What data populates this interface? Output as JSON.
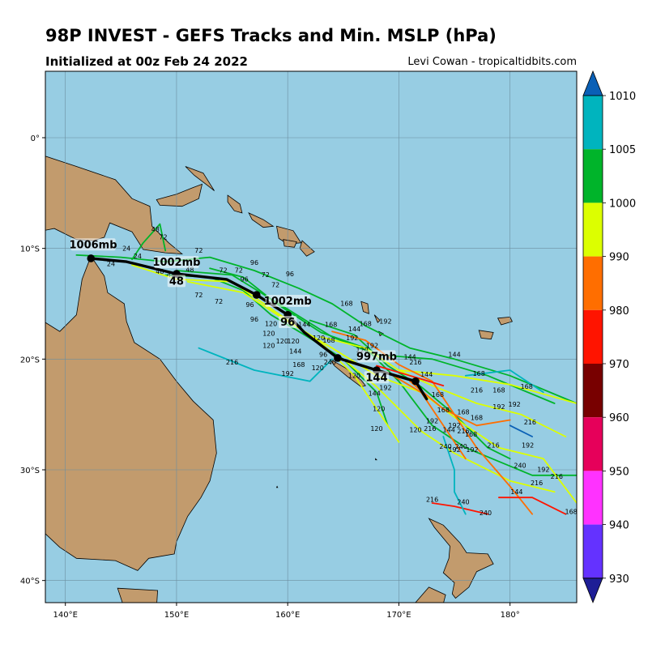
{
  "title": "98P INVEST - GEFS Tracks and Min. MSLP (hPa)",
  "subtitle": "Initialized at 00z Feb 24 2022",
  "credit": "Levi Cowan - tropicaltidbits.com",
  "map": {
    "extent": {
      "lon": [
        138.2,
        186
      ],
      "lat": [
        -42,
        6
      ]
    },
    "lon_ticks": [
      {
        "value": 140,
        "label": "140°E"
      },
      {
        "value": 150,
        "label": "150°E"
      },
      {
        "value": 160,
        "label": "160°E"
      },
      {
        "value": 170,
        "label": "170°E"
      },
      {
        "value": 180,
        "label": "180°"
      }
    ],
    "lat_ticks": [
      {
        "value": 0,
        "label": "0°"
      },
      {
        "value": -10,
        "label": "10°S"
      },
      {
        "value": -20,
        "label": "20°S"
      },
      {
        "value": -30,
        "label": "30°S"
      },
      {
        "value": -40,
        "label": "40°S"
      }
    ],
    "colors": {
      "ocean": "#97cde3",
      "land": "#c29b6d",
      "grid": "#6b8ea0"
    }
  },
  "colorbar": {
    "ticks": [
      "1010",
      "1005",
      "1000",
      "990",
      "980",
      "970",
      "960",
      "950",
      "940",
      "930"
    ],
    "colors": [
      "#0a60b6",
      "#00b4be",
      "#00b42a",
      "#dcff00",
      "#ff6e00",
      "#ff1400",
      "#780000",
      "#e6005a",
      "#ff32ff",
      "#6432ff",
      "#1e1e96"
    ]
  },
  "mean_track": {
    "points": [
      [
        142.3,
        -10.9
      ],
      [
        145.5,
        -11.2
      ],
      [
        150.0,
        -12.3
      ],
      [
        154.5,
        -12.8
      ],
      [
        157.2,
        -14.2
      ],
      [
        160.0,
        -16.0
      ],
      [
        161.5,
        -17.6
      ],
      [
        164.5,
        -19.9
      ],
      [
        168.0,
        -21.0
      ],
      [
        171.5,
        -22.0
      ],
      [
        172.5,
        -23.6
      ]
    ],
    "dots": [
      [
        142.3,
        -10.9
      ],
      [
        150.0,
        -12.3
      ],
      [
        157.2,
        -14.2
      ],
      [
        160.0,
        -16.0
      ],
      [
        164.5,
        -19.9
      ],
      [
        168.0,
        -21.0
      ],
      [
        171.5,
        -22.0
      ]
    ],
    "labels": [
      {
        "text": "1006mb",
        "lon": 142.5,
        "lat": -9.9
      },
      {
        "text": "1002mb",
        "lon": 150.0,
        "lat": -11.5
      },
      {
        "text": "48",
        "lon": 150.0,
        "lat": -13.2
      },
      {
        "text": "1002mb",
        "lon": 160.0,
        "lat": -15.0
      },
      {
        "text": "96",
        "lon": 160.0,
        "lat": -16.9
      },
      {
        "text": "997mb",
        "lon": 168.0,
        "lat": -20.0
      },
      {
        "text": "144",
        "lon": 168.0,
        "lat": -21.9
      }
    ]
  },
  "tracks": [
    {
      "color": "#00b42a",
      "points": [
        [
          141.0,
          -10.6
        ],
        [
          145.0,
          -10.8
        ],
        [
          149.0,
          -11.2
        ],
        [
          153.0,
          -10.8
        ],
        [
          157.0,
          -12.0
        ],
        [
          161.0,
          -13.6
        ],
        [
          164.0,
          -15.0
        ],
        [
          167.0,
          -17.0
        ],
        [
          171.0,
          -19.0
        ],
        [
          175.0,
          -20.0
        ],
        [
          180.0,
          -21.5
        ],
        [
          186.0,
          -24.0
        ]
      ]
    },
    {
      "color": "#00b42a",
      "points": [
        [
          146.0,
          -11.0
        ],
        [
          147.0,
          -9.5
        ],
        [
          148.5,
          -7.8
        ],
        [
          149.0,
          -10.2
        ]
      ]
    },
    {
      "color": "#00b42a",
      "points": [
        [
          149.0,
          -12.4
        ],
        [
          153.0,
          -12.6
        ],
        [
          156.0,
          -13.8
        ],
        [
          158.5,
          -16.0
        ],
        [
          161.5,
          -17.8
        ],
        [
          165.0,
          -20.0
        ],
        [
          168.0,
          -23.0
        ],
        [
          169.0,
          -26.0
        ]
      ]
    },
    {
      "color": "#00b42a",
      "points": [
        [
          150.0,
          -12.0
        ],
        [
          155.0,
          -12.4
        ],
        [
          160.0,
          -15.5
        ],
        [
          164.0,
          -18.0
        ],
        [
          168.0,
          -19.6
        ],
        [
          173.0,
          -20.0
        ],
        [
          178.0,
          -21.5
        ],
        [
          184.0,
          -24.0
        ]
      ]
    },
    {
      "color": "#00b42a",
      "points": [
        [
          153.0,
          -11.8
        ],
        [
          156.0,
          -12.6
        ],
        [
          159.0,
          -15.0
        ],
        [
          163.0,
          -17.6
        ],
        [
          167.0,
          -19.0
        ],
        [
          170.0,
          -22.0
        ],
        [
          173.0,
          -26.0
        ],
        [
          176.0,
          -28.0
        ],
        [
          182.0,
          -30.5
        ],
        [
          186.0,
          -30.5
        ]
      ]
    },
    {
      "color": "#00b42a",
      "points": [
        [
          162.0,
          -16.5
        ],
        [
          166.0,
          -17.8
        ],
        [
          169.0,
          -20.6
        ],
        [
          172.0,
          -22.5
        ],
        [
          175.0,
          -25.0
        ],
        [
          178.0,
          -28.0
        ],
        [
          180.0,
          -29.0
        ]
      ]
    },
    {
      "color": "#dcff00",
      "points": [
        [
          146.0,
          -11.5
        ],
        [
          150.0,
          -12.8
        ],
        [
          155.0,
          -13.0
        ],
        [
          159.0,
          -15.8
        ],
        [
          163.0,
          -18.5
        ],
        [
          166.0,
          -21.5
        ],
        [
          168.0,
          -24.5
        ],
        [
          170.0,
          -27.5
        ]
      ]
    },
    {
      "color": "#dcff00",
      "points": [
        [
          151.0,
          -13.0
        ],
        [
          156.0,
          -14.0
        ],
        [
          160.0,
          -16.6
        ],
        [
          164.0,
          -19.0
        ],
        [
          168.0,
          -21.5
        ],
        [
          172.0,
          -23.0
        ],
        [
          176.0,
          -26.0
        ],
        [
          179.0,
          -28.0
        ],
        [
          183.0,
          -29.0
        ],
        [
          186.0,
          -33.0
        ]
      ]
    },
    {
      "color": "#dcff00",
      "points": [
        [
          163.0,
          -18.0
        ],
        [
          167.0,
          -19.0
        ],
        [
          170.0,
          -21.0
        ],
        [
          173.0,
          -22.4
        ],
        [
          177.0,
          -24.0
        ],
        [
          181.0,
          -25.0
        ],
        [
          185.0,
          -27.0
        ]
      ]
    },
    {
      "color": "#dcff00",
      "points": [
        [
          165.0,
          -20.0
        ],
        [
          168.0,
          -22.5
        ],
        [
          170.0,
          -24.5
        ],
        [
          172.0,
          -26.5
        ],
        [
          175.0,
          -28.5
        ],
        [
          180.0,
          -31.0
        ],
        [
          184.0,
          -32.0
        ]
      ]
    },
    {
      "color": "#dcff00",
      "points": [
        [
          170.0,
          -21.0
        ],
        [
          175.0,
          -21.5
        ],
        [
          180.0,
          -22.3
        ],
        [
          186.0,
          -24.0
        ]
      ]
    },
    {
      "color": "#ff6e00",
      "points": [
        [
          164.0,
          -17.5
        ],
        [
          167.0,
          -18.3
        ],
        [
          170.0,
          -20.5
        ],
        [
          173.0,
          -22.0
        ],
        [
          175.0,
          -25.0
        ],
        [
          177.0,
          -28.0
        ],
        [
          180.0,
          -31.5
        ],
        [
          182.0,
          -34.0
        ]
      ]
    },
    {
      "color": "#ff6e00",
      "points": [
        [
          169.0,
          -21.2
        ],
        [
          172.0,
          -23.0
        ],
        [
          174.0,
          -26.0
        ],
        [
          176.0,
          -29.0
        ]
      ]
    },
    {
      "color": "#ff6e00",
      "points": [
        [
          171.0,
          -22.0
        ],
        [
          174.0,
          -24.5
        ],
        [
          177.0,
          -26.0
        ],
        [
          180.0,
          -25.5
        ]
      ]
    },
    {
      "color": "#ff1400",
      "points": [
        [
          168.0,
          -20.6
        ],
        [
          171.0,
          -21.5
        ],
        [
          174.0,
          -22.4
        ]
      ]
    },
    {
      "color": "#ff1400",
      "points": [
        [
          173.0,
          -33.0
        ],
        [
          175.0,
          -33.3
        ],
        [
          178.0,
          -34.0
        ]
      ]
    },
    {
      "color": "#ff1400",
      "points": [
        [
          179.0,
          -32.5
        ],
        [
          182.0,
          -32.5
        ],
        [
          185.0,
          -34.0
        ]
      ]
    },
    {
      "color": "#00b4be",
      "points": [
        [
          152.0,
          -19.0
        ],
        [
          157.0,
          -21.0
        ],
        [
          162.0,
          -22.0
        ],
        [
          164.0,
          -20.0
        ]
      ]
    },
    {
      "color": "#00b4be",
      "points": [
        [
          176.0,
          -21.5
        ],
        [
          180.0,
          -21.0
        ],
        [
          183.0,
          -23.0
        ]
      ]
    },
    {
      "color": "#00b4be",
      "points": [
        [
          174.0,
          -27.0
        ],
        [
          175.0,
          -30.0
        ],
        [
          175.0,
          -32.0
        ],
        [
          176.0,
          -34.0
        ]
      ]
    },
    {
      "color": "#0a60b6",
      "points": [
        [
          180.0,
          -26.0
        ],
        [
          182.0,
          -27.0
        ]
      ]
    }
  ],
  "hour_labels": [
    {
      "t": "24",
      "lon": 145.5,
      "lat": -10.2
    },
    {
      "t": "24",
      "lon": 146.5,
      "lat": -10.9
    },
    {
      "t": "24",
      "lon": 144.1,
      "lat": -11.6
    },
    {
      "t": "48",
      "lon": 148.1,
      "lat": -8.5
    },
    {
      "t": "72",
      "lon": 148.8,
      "lat": -9.2
    },
    {
      "t": "48",
      "lon": 148.5,
      "lat": -12.3
    },
    {
      "t": "48",
      "lon": 149.5,
      "lat": -12.6
    },
    {
      "t": "48",
      "lon": 151.2,
      "lat": -12.1
    },
    {
      "t": "72",
      "lon": 152.0,
      "lat": -10.4
    },
    {
      "t": "72",
      "lon": 154.2,
      "lat": -12.2
    },
    {
      "t": "72",
      "lon": 155.6,
      "lat": -12.2
    },
    {
      "t": "72",
      "lon": 152.0,
      "lat": -14.4
    },
    {
      "t": "72",
      "lon": 153.8,
      "lat": -15.0
    },
    {
      "t": "96",
      "lon": 157.0,
      "lat": -11.5
    },
    {
      "t": "96",
      "lon": 160.2,
      "lat": -12.5
    },
    {
      "t": "72",
      "lon": 158.0,
      "lat": -12.6
    },
    {
      "t": "72",
      "lon": 158.9,
      "lat": -13.5
    },
    {
      "t": "96",
      "lon": 156.1,
      "lat": -13.0
    },
    {
      "t": "96",
      "lon": 156.6,
      "lat": -15.3
    },
    {
      "t": "96",
      "lon": 157.0,
      "lat": -16.6
    },
    {
      "t": "120",
      "lon": 158.5,
      "lat": -17.0
    },
    {
      "t": "120",
      "lon": 158.3,
      "lat": -17.9
    },
    {
      "t": "120",
      "lon": 158.3,
      "lat": -19.0
    },
    {
      "t": "120",
      "lon": 159.5,
      "lat": -18.6
    },
    {
      "t": "120",
      "lon": 160.5,
      "lat": -18.6
    },
    {
      "t": "144",
      "lon": 161.5,
      "lat": -17.1
    },
    {
      "t": "144",
      "lon": 160.7,
      "lat": -19.5
    },
    {
      "t": "168",
      "lon": 165.3,
      "lat": -15.2
    },
    {
      "t": "168",
      "lon": 163.9,
      "lat": -17.1
    },
    {
      "t": "144",
      "lon": 166.0,
      "lat": -17.5
    },
    {
      "t": "192",
      "lon": 168.8,
      "lat": -16.8
    },
    {
      "t": "168",
      "lon": 167.0,
      "lat": -17.0
    },
    {
      "t": "120",
      "lon": 162.8,
      "lat": -18.3
    },
    {
      "t": "168",
      "lon": 163.7,
      "lat": -18.5
    },
    {
      "t": "192",
      "lon": 165.8,
      "lat": -18.3
    },
    {
      "t": "192",
      "lon": 167.6,
      "lat": -19.0
    },
    {
      "t": "120",
      "lon": 166.7,
      "lat": -19.4
    },
    {
      "t": "96",
      "lon": 163.2,
      "lat": -19.8
    },
    {
      "t": "168",
      "lon": 161.0,
      "lat": -20.7
    },
    {
      "t": "120",
      "lon": 162.7,
      "lat": -21.0
    },
    {
      "t": "240",
      "lon": 163.8,
      "lat": -20.5
    },
    {
      "t": "120",
      "lon": 166.0,
      "lat": -21.7
    },
    {
      "t": "216",
      "lon": 155.0,
      "lat": -20.5
    },
    {
      "t": "192",
      "lon": 160.0,
      "lat": -21.5
    },
    {
      "t": "144",
      "lon": 171.0,
      "lat": -20.0
    },
    {
      "t": "144",
      "lon": 175.0,
      "lat": -19.8
    },
    {
      "t": "216",
      "lon": 171.5,
      "lat": -20.5
    },
    {
      "t": "168",
      "lon": 177.2,
      "lat": -21.5
    },
    {
      "t": "144",
      "lon": 172.5,
      "lat": -21.6
    },
    {
      "t": "168",
      "lon": 181.5,
      "lat": -22.7
    },
    {
      "t": "216",
      "lon": 177.0,
      "lat": -23.0
    },
    {
      "t": "168",
      "lon": 179.0,
      "lat": -23.0
    },
    {
      "t": "192",
      "lon": 168.8,
      "lat": -22.8
    },
    {
      "t": "144",
      "lon": 167.8,
      "lat": -23.3
    },
    {
      "t": "168",
      "lon": 173.5,
      "lat": -23.4
    },
    {
      "t": "192",
      "lon": 179.0,
      "lat": -24.5
    },
    {
      "t": "192",
      "lon": 180.4,
      "lat": -24.3
    },
    {
      "t": "120",
      "lon": 168.2,
      "lat": -24.7
    },
    {
      "t": "168",
      "lon": 174.0,
      "lat": -24.8
    },
    {
      "t": "168",
      "lon": 175.8,
      "lat": -25.0
    },
    {
      "t": "168",
      "lon": 177.0,
      "lat": -25.5
    },
    {
      "t": "192",
      "lon": 173.0,
      "lat": -25.8
    },
    {
      "t": "216",
      "lon": 181.8,
      "lat": -25.9
    },
    {
      "t": "120",
      "lon": 168.0,
      "lat": -26.5
    },
    {
      "t": "120",
      "lon": 171.5,
      "lat": -26.6
    },
    {
      "t": "216",
      "lon": 172.8,
      "lat": -26.5
    },
    {
      "t": "144",
      "lon": 174.5,
      "lat": -26.6
    },
    {
      "t": "192",
      "lon": 175.0,
      "lat": -26.2
    },
    {
      "t": "216",
      "lon": 175.8,
      "lat": -26.7
    },
    {
      "t": "168",
      "lon": 176.5,
      "lat": -27.0
    },
    {
      "t": "240",
      "lon": 174.2,
      "lat": -28.1
    },
    {
      "t": "192",
      "lon": 175.0,
      "lat": -28.4
    },
    {
      "t": "240",
      "lon": 175.6,
      "lat": -28.1
    },
    {
      "t": "192",
      "lon": 176.6,
      "lat": -28.4
    },
    {
      "t": "216",
      "lon": 178.5,
      "lat": -28.0
    },
    {
      "t": "192",
      "lon": 181.6,
      "lat": -28.0
    },
    {
      "t": "240",
      "lon": 180.9,
      "lat": -29.8
    },
    {
      "t": "192",
      "lon": 183.0,
      "lat": -30.2
    },
    {
      "t": "216",
      "lon": 184.2,
      "lat": -30.8
    },
    {
      "t": "216",
      "lon": 182.4,
      "lat": -31.4
    },
    {
      "t": "144",
      "lon": 180.6,
      "lat": -32.2
    },
    {
      "t": "216",
      "lon": 173.0,
      "lat": -32.9
    },
    {
      "t": "240",
      "lon": 175.8,
      "lat": -33.1
    },
    {
      "t": "240",
      "lon": 177.8,
      "lat": -34.1
    },
    {
      "t": "168",
      "lon": 185.5,
      "lat": -34.0
    }
  ]
}
